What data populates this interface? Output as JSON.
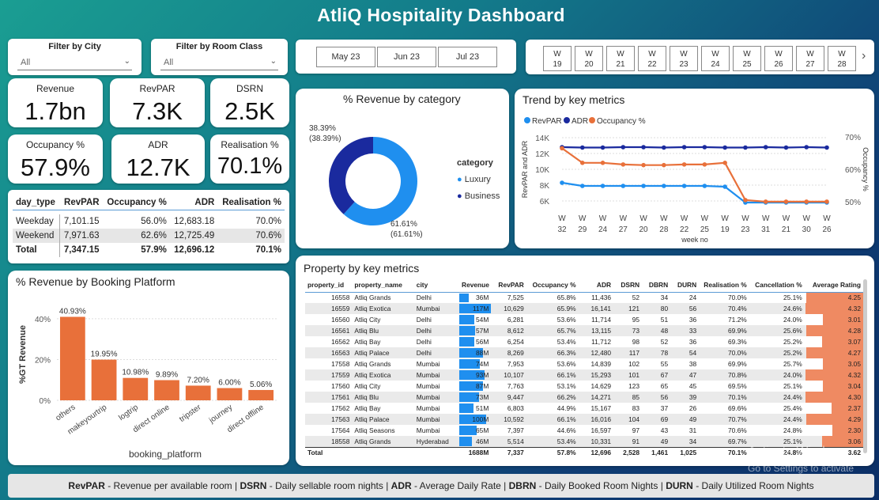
{
  "title": "AtliQ Hospitality Dashboard",
  "filters": {
    "city": {
      "label": "Filter by City",
      "value": "All"
    },
    "room_class": {
      "label": "Filter by Room Class",
      "value": "All"
    }
  },
  "months": [
    "May 23",
    "Jun 23",
    "Jul 23"
  ],
  "weeks": [
    [
      "W",
      "19"
    ],
    [
      "W",
      "20"
    ],
    [
      "W",
      "21"
    ],
    [
      "W",
      "22"
    ],
    [
      "W",
      "23"
    ],
    [
      "W",
      "24"
    ],
    [
      "W",
      "25"
    ],
    [
      "W",
      "26"
    ],
    [
      "W",
      "27"
    ],
    [
      "W",
      "28"
    ]
  ],
  "kpis": {
    "revenue": {
      "label": "Revenue",
      "value": "1.7bn"
    },
    "revpar": {
      "label": "RevPAR",
      "value": "7.3K"
    },
    "dsrn": {
      "label": "DSRN",
      "value": "2.5K"
    },
    "occupancy": {
      "label": "Occupancy %",
      "value": "57.9%"
    },
    "adr": {
      "label": "ADR",
      "value": "12.7K"
    },
    "realisation": {
      "label": "Realisation %",
      "value": "70.1%"
    }
  },
  "day_type_table": {
    "headers": [
      "day_type",
      "RevPAR",
      "Occupancy %",
      "ADR",
      "Realisation %"
    ],
    "rows": [
      [
        "Weekday",
        "7,101.15",
        "56.0%",
        "12,683.18",
        "70.0%"
      ],
      [
        "Weekend",
        "7,971.63",
        "62.6%",
        "12,725.49",
        "70.6%"
      ]
    ],
    "total": [
      "Total",
      "7,347.15",
      "57.9%",
      "12,696.12",
      "70.1%"
    ]
  },
  "donut": {
    "title": "% Revenue by category",
    "legend_title": "category",
    "business_label": "38.39%",
    "business_sub": "(38.39%)",
    "luxury_label": "61.61%",
    "luxury_sub": "(61.61%)",
    "colors": {
      "luxury": "#1f8fef",
      "business": "#1a2a9e"
    }
  },
  "trend": {
    "title": "Trend by key metrics",
    "legend": [
      "RevPAR",
      "ADR",
      "Occupancy %"
    ],
    "colors": {
      "revpar": "#1f8fef",
      "adr": "#1a2a9e",
      "occ": "#e8703a"
    },
    "left_ticks": [
      "14K",
      "12K",
      "10K",
      "8K",
      "6K"
    ],
    "right_ticks": [
      "70%",
      "60%",
      "50%"
    ],
    "left_axis": "RevPAR and ADR",
    "right_axis": "Occupancy %",
    "x_label": "week no"
  },
  "platform": {
    "title": "% Revenue by Booking Platform",
    "y_ticks": [
      "40%",
      "20%",
      "0%"
    ],
    "y_axis": "%GT Revenue",
    "x_axis": "booking_platform"
  },
  "property": {
    "title": "Property by key metrics",
    "headers": [
      "property_id",
      "property_name",
      "city",
      "Revenue",
      "RevPAR",
      "Occupancy %",
      "ADR",
      "DSRN",
      "DBRN",
      "DURN",
      "Realisation %",
      "Cancellation %",
      "Average Rating"
    ],
    "rows": [
      [
        "16558",
        "Atliq Grands",
        "Delhi",
        "36M",
        "7,525",
        "65.8%",
        "11,436",
        "52",
        "34",
        "24",
        "70.0%",
        "25.1%",
        "4.25"
      ],
      [
        "16559",
        "Atliq Exotica",
        "Mumbai",
        "117M",
        "10,629",
        "65.9%",
        "16,141",
        "121",
        "80",
        "56",
        "70.4%",
        "24.6%",
        "4.32"
      ],
      [
        "16560",
        "Atliq City",
        "Delhi",
        "54M",
        "6,281",
        "53.6%",
        "11,714",
        "95",
        "51",
        "36",
        "71.2%",
        "24.0%",
        "3.01"
      ],
      [
        "16561",
        "Atliq Blu",
        "Delhi",
        "57M",
        "8,612",
        "65.7%",
        "13,115",
        "73",
        "48",
        "33",
        "69.9%",
        "25.6%",
        "4.28"
      ],
      [
        "16562",
        "Atliq Bay",
        "Delhi",
        "56M",
        "6,254",
        "53.4%",
        "11,712",
        "98",
        "52",
        "36",
        "69.3%",
        "25.2%",
        "3.07"
      ],
      [
        "16563",
        "Atliq Palace",
        "Delhi",
        "88M",
        "8,269",
        "66.3%",
        "12,480",
        "117",
        "78",
        "54",
        "70.0%",
        "25.2%",
        "4.27"
      ],
      [
        "17558",
        "Atliq Grands",
        "Mumbai",
        "74M",
        "7,953",
        "53.6%",
        "14,839",
        "102",
        "55",
        "38",
        "69.9%",
        "25.7%",
        "3.05"
      ],
      [
        "17559",
        "Atliq Exotica",
        "Mumbai",
        "93M",
        "10,107",
        "66.1%",
        "15,293",
        "101",
        "67",
        "47",
        "70.8%",
        "24.0%",
        "4.32"
      ],
      [
        "17560",
        "Atliq City",
        "Mumbai",
        "87M",
        "7,763",
        "53.1%",
        "14,629",
        "123",
        "65",
        "45",
        "69.5%",
        "25.1%",
        "3.04"
      ],
      [
        "17561",
        "Atliq Blu",
        "Mumbai",
        "73M",
        "9,447",
        "66.2%",
        "14,271",
        "85",
        "56",
        "39",
        "70.1%",
        "24.4%",
        "4.30"
      ],
      [
        "17562",
        "Atliq Bay",
        "Mumbai",
        "51M",
        "6,803",
        "44.9%",
        "15,167",
        "83",
        "37",
        "26",
        "69.6%",
        "25.4%",
        "2.37"
      ],
      [
        "17563",
        "Atliq Palace",
        "Mumbai",
        "100M",
        "10,592",
        "66.1%",
        "16,016",
        "104",
        "69",
        "49",
        "70.7%",
        "24.4%",
        "4.29"
      ],
      [
        "17564",
        "Atliq Seasons",
        "Mumbai",
        "65M",
        "7,397",
        "44.6%",
        "16,597",
        "97",
        "43",
        "31",
        "70.6%",
        "24.8%",
        "2.30"
      ],
      [
        "18558",
        "Atliq Grands",
        "Hyderabad",
        "46M",
        "5,514",
        "53.4%",
        "10,331",
        "91",
        "49",
        "34",
        "69.7%",
        "25.1%",
        "3.06"
      ]
    ],
    "total": [
      "Total",
      "",
      "",
      "1688M",
      "7,337",
      "57.8%",
      "12,696",
      "2,528",
      "1,461",
      "1,025",
      "70.1%",
      "24.8%",
      "3.62"
    ]
  },
  "footer": {
    "items": [
      [
        "RevPAR",
        "Revenue per available room"
      ],
      [
        "DSRN",
        "Daily sellable room nights"
      ],
      [
        "ADR",
        "Average Daily Rate"
      ],
      [
        "DBRN",
        "Daily Booked Room Nights"
      ],
      [
        "DURN",
        "Daily Utilized Room Nights"
      ]
    ]
  },
  "watermark": {
    "line1": "Activate Windows",
    "line2": "Go to Settings to activate"
  },
  "chart_data": [
    {
      "type": "bar",
      "title": "% Revenue by Booking Platform",
      "categories": [
        "others",
        "makeyourtrip",
        "logtrip",
        "direct online",
        "tripster",
        "journey",
        "direct offline"
      ],
      "values": [
        40.93,
        19.95,
        10.98,
        9.89,
        7.2,
        6.0,
        5.06
      ],
      "labels": [
        "40.93%",
        "19.95%",
        "10.98%",
        "9.89%",
        "7.20%",
        "6.00%",
        "5.06%"
      ],
      "ylabel": "%GT Revenue",
      "xlabel": "booking_platform",
      "ylim": [
        0,
        45
      ],
      "color": "#e8703a"
    },
    {
      "type": "pie",
      "title": "% Revenue by category",
      "categories": [
        "Luxury",
        "Business"
      ],
      "values": [
        61.61,
        38.39
      ]
    },
    {
      "type": "line",
      "title": "Trend by key metrics",
      "x": [
        "32",
        "29",
        "24",
        "27",
        "20",
        "28",
        "22",
        "25",
        "19",
        "23",
        "31",
        "21",
        "30",
        "26"
      ],
      "series": [
        {
          "name": "RevPAR",
          "axis": "left",
          "values": [
            8300,
            7900,
            7900,
            7900,
            7900,
            7900,
            7900,
            7900,
            7800,
            5800,
            5800,
            5800,
            5800,
            5800
          ]
        },
        {
          "name": "ADR",
          "axis": "left",
          "values": [
            12800,
            12750,
            12750,
            12800,
            12800,
            12750,
            12800,
            12800,
            12750,
            12750,
            12800,
            12750,
            12800,
            12750
          ]
        },
        {
          "name": "Occupancy %",
          "axis": "right",
          "values": [
            66.5,
            62,
            62,
            61.5,
            61.3,
            61.3,
            61.5,
            61.5,
            62,
            50.5,
            50,
            50,
            50,
            50
          ]
        }
      ],
      "ylim_left": [
        5500,
        14500
      ],
      "ylim_right": [
        49,
        71
      ]
    }
  ]
}
